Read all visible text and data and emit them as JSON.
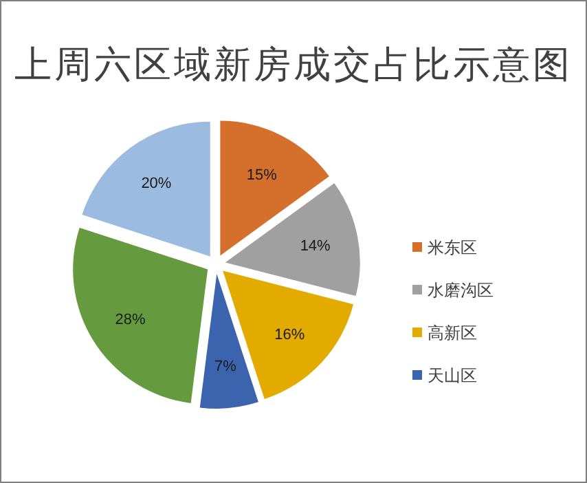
{
  "chart_data": {
    "type": "pie",
    "title": "上周六区域新房成交占比示意图",
    "categories": [
      "米东区",
      "水磨沟区",
      "高新区",
      "天山区",
      null,
      null
    ],
    "values": [
      15,
      14,
      16,
      7,
      28,
      20
    ],
    "value_labels": [
      "15%",
      "14%",
      "16%",
      "7%",
      "28%",
      "20%"
    ],
    "colors": [
      "#d5702c",
      "#a0a0a0",
      "#e3aa00",
      "#3c63ae",
      "#659a3e",
      "#9bbbe0"
    ],
    "legend": "right"
  }
}
